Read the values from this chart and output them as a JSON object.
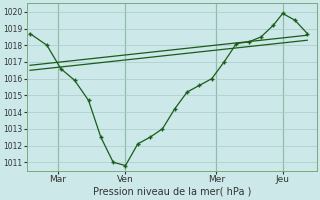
{
  "bg_color": "#cce8e8",
  "grid_color": "#aacccc",
  "line_color": "#1a5c1a",
  "vline_color": "#5a9a5a",
  "xlabel": "Pression niveau de la mer( hPa )",
  "ylim": [
    1010.5,
    1020.5
  ],
  "xlim": [
    -0.1,
    9.3
  ],
  "xtick_labels": [
    "Mar",
    "Ven",
    "Mer",
    "Jeu"
  ],
  "xtick_positions": [
    0.9,
    3.1,
    6.05,
    8.2
  ],
  "ytick_values": [
    1011,
    1012,
    1013,
    1014,
    1015,
    1016,
    1017,
    1018,
    1019,
    1020
  ],
  "zigzag_x": [
    0.0,
    0.55,
    1.0,
    1.45,
    1.9,
    2.3,
    2.7,
    3.1,
    3.5,
    3.9,
    4.3,
    4.7,
    5.1,
    5.5,
    5.9,
    6.3,
    6.7,
    7.1,
    7.5,
    7.9,
    8.2,
    8.6,
    9.0
  ],
  "zigzag_y": [
    1018.7,
    1018.0,
    1016.6,
    1015.9,
    1014.7,
    1012.5,
    1011.0,
    1010.8,
    1012.1,
    1012.5,
    1013.0,
    1014.2,
    1015.2,
    1015.6,
    1016.0,
    1017.0,
    1018.1,
    1018.2,
    1018.5,
    1019.2,
    1019.9,
    1019.5,
    1018.7
  ],
  "line2_x": [
    0.0,
    9.0
  ],
  "line2_y": [
    1016.5,
    1018.3
  ],
  "line3_x": [
    0.0,
    9.0
  ],
  "line3_y": [
    1016.8,
    1018.6
  ],
  "xlabel_fontsize": 7,
  "ytick_fontsize": 5.5,
  "xtick_fontsize": 6.5
}
